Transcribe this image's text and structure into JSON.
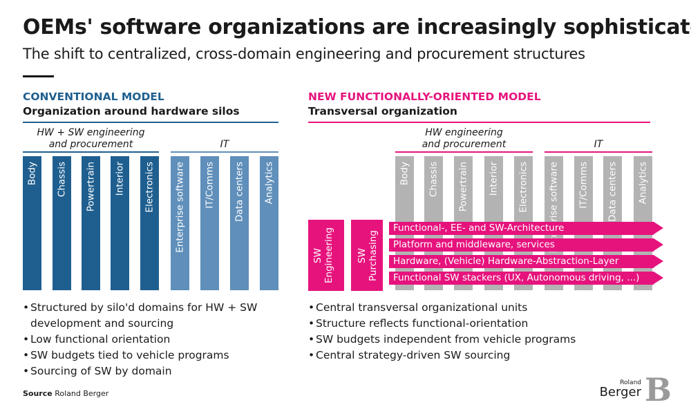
{
  "title": "OEMs' software organizations are increasingly sophisticated",
  "subtitle": "The shift to centralized, cross-domain engineering and procurement structures",
  "conventional": {
    "heading": "CONVENTIONAL MODEL",
    "subheading": "Organization around hardware silos",
    "group_hw": "HW + SW engineering\nand procurement",
    "group_it": "IT",
    "hw_bars": [
      "Body",
      "Chassis",
      "Powertrain",
      "Interior",
      "Electronics"
    ],
    "it_bars": [
      "Enterprise software",
      "IT/Comms",
      "Data centers",
      "Analytics"
    ],
    "bullets": [
      "Structured by silo'd domains for HW + SW development and sourcing",
      "Low functional orientation",
      "SW budgets tied to vehicle programs",
      "Sourcing of SW by domain"
    ]
  },
  "functional": {
    "heading": "NEW FUNCTIONALLY-ORIENTED MODEL",
    "subheading": "Transversal organization",
    "group_hw": "HW engineering\nand procurement",
    "group_it": "IT",
    "hw_bars": [
      "Body",
      "Chassis",
      "Powertrain",
      "Interior",
      "Electronics"
    ],
    "it_bars": [
      "Enterprise software",
      "IT/Comms",
      "Data centers",
      "Analytics"
    ],
    "sw_engineering": "SW\nEngineering",
    "sw_purchasing": "SW\nPurchasing",
    "bands": [
      "Functional-, EE- and SW-Architecture",
      "Platform and middleware, services",
      "Hardware, (Vehicle) Hardware-Abstraction-Layer",
      "Functional SW stackers (UX, Autonomous driving, ...)"
    ],
    "bullets": [
      "Central transversal organizational units",
      "Structure reflects functional-orientation",
      "SW budgets independent from vehicle programs",
      "Central strategy-driven SW sourcing"
    ]
  },
  "source": {
    "label": "Source",
    "value": "Roland Berger"
  },
  "logo": {
    "line1": "Roland",
    "line2": "Berger",
    "mark": "B"
  },
  "colors": {
    "blue_dark": "#1f5f8f",
    "blue_light": "#5f8fba",
    "pink": "#e6137d",
    "grey": "#b3b3b3"
  }
}
